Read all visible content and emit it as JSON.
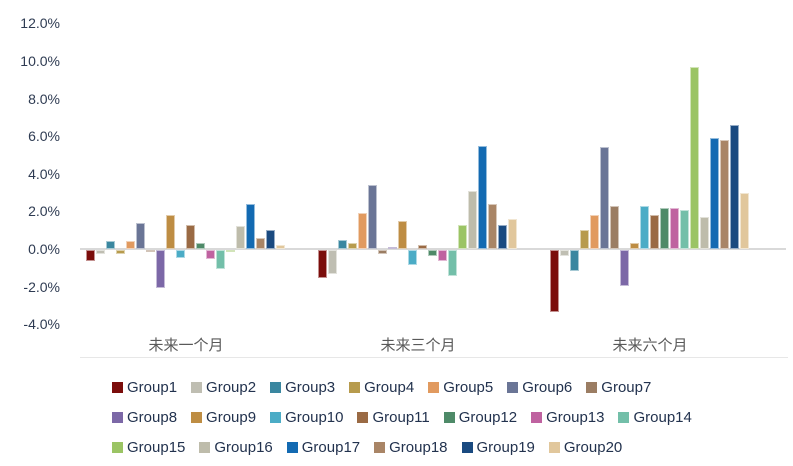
{
  "chart_data": {
    "type": "bar",
    "title": "",
    "xlabel": "",
    "ylabel": "",
    "categories": [
      "未来一个月",
      "未来三个月",
      "未来六个月"
    ],
    "y_ticks": [
      "12.0%",
      "10.0%",
      "8.0%",
      "6.0%",
      "4.0%",
      "2.0%",
      "0.0%",
      "-2.0%",
      "-4.0%"
    ],
    "ylim": [
      -4.0,
      12.0
    ],
    "unit": "%",
    "grid": false,
    "legend_position": "bottom",
    "legend_rows": [
      7,
      7,
      6
    ],
    "series": [
      {
        "name": "Group1",
        "color": "#7B0D0B",
        "values": [
          -0.6,
          -1.5,
          -3.3
        ]
      },
      {
        "name": "Group2",
        "color": "#BFBEB2",
        "values": [
          -0.2,
          -1.3,
          -0.3
        ]
      },
      {
        "name": "Group3",
        "color": "#3A87A0",
        "values": [
          0.4,
          0.5,
          -1.1
        ]
      },
      {
        "name": "Group4",
        "color": "#B79B4D",
        "values": [
          -0.2,
          0.3,
          1.0
        ]
      },
      {
        "name": "Group5",
        "color": "#E19A5F",
        "values": [
          0.4,
          1.9,
          1.8
        ]
      },
      {
        "name": "Group6",
        "color": "#6A7596",
        "values": [
          1.4,
          3.4,
          5.4
        ]
      },
      {
        "name": "Group7",
        "color": "#9B7D63",
        "values": [
          -0.1,
          -0.2,
          2.3
        ]
      },
      {
        "name": "Group8",
        "color": "#7C68A7",
        "values": [
          -2.0,
          0.1,
          -1.9
        ]
      },
      {
        "name": "Group9",
        "color": "#BE8D43",
        "values": [
          1.8,
          1.5,
          0.3
        ]
      },
      {
        "name": "Group10",
        "color": "#4BACC6",
        "values": [
          -0.4,
          -0.8,
          2.3
        ]
      },
      {
        "name": "Group11",
        "color": "#9A6A44",
        "values": [
          1.3,
          0.2,
          1.8
        ]
      },
      {
        "name": "Group12",
        "color": "#4E8A68",
        "values": [
          0.3,
          -0.3,
          2.2
        ]
      },
      {
        "name": "Group13",
        "color": "#BF62A0",
        "values": [
          -0.5,
          -0.6,
          2.2
        ]
      },
      {
        "name": "Group14",
        "color": "#73BFA9",
        "values": [
          -1.0,
          -1.4,
          2.1
        ]
      },
      {
        "name": "Group15",
        "color": "#9BC464",
        "values": [
          -0.1,
          1.3,
          9.7
        ]
      },
      {
        "name": "Group16",
        "color": "#BEBCAB",
        "values": [
          1.2,
          3.1,
          1.7
        ]
      },
      {
        "name": "Group17",
        "color": "#136AB2",
        "values": [
          2.4,
          5.5,
          5.9
        ]
      },
      {
        "name": "Group18",
        "color": "#A98566",
        "values": [
          0.6,
          2.4,
          5.8
        ]
      },
      {
        "name": "Group19",
        "color": "#1A4A80",
        "values": [
          1.0,
          1.3,
          6.6
        ]
      },
      {
        "name": "Group20",
        "color": "#E1C79C",
        "values": [
          0.2,
          1.6,
          3.0
        ]
      }
    ]
  },
  "layout_colors": {
    "background": "#FFFFFF",
    "zero_line": "#D9D9D9",
    "separator": "#E7E7E7",
    "axis_text": "#2E3B52",
    "category_text": "#595959",
    "legend_text": "#22324E"
  }
}
